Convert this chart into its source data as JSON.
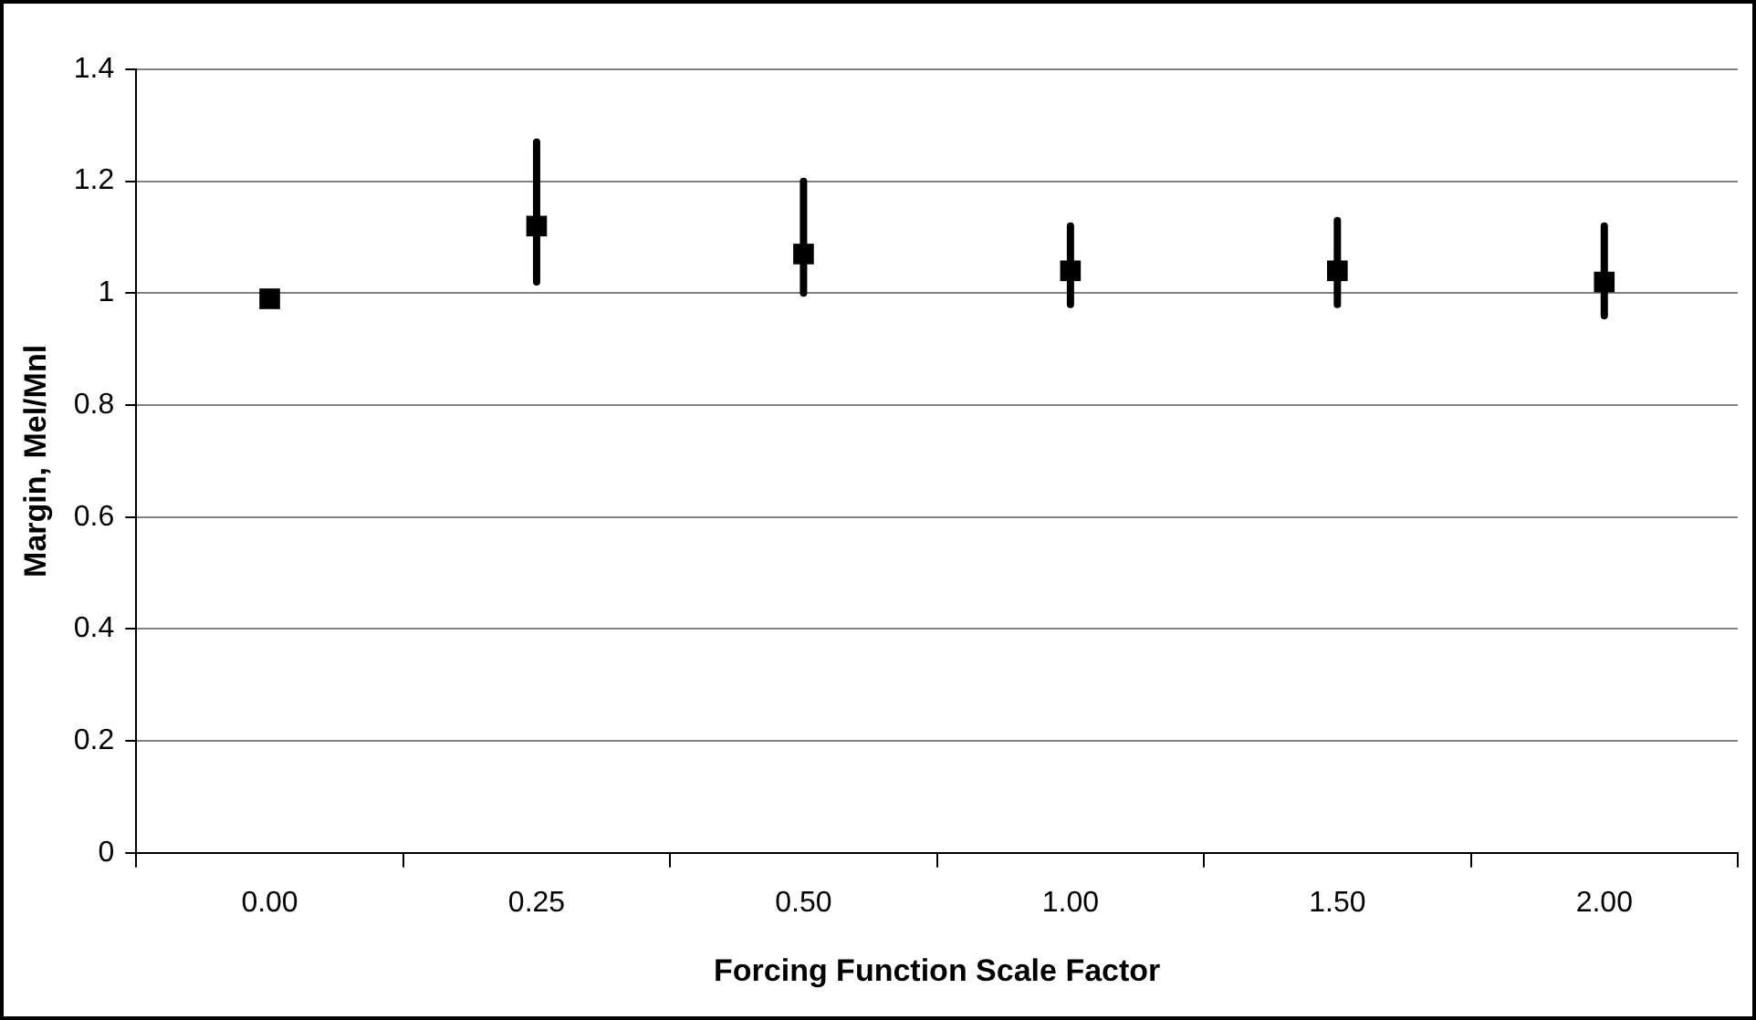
{
  "chart_data": {
    "type": "scatter",
    "xlabel": "Forcing Function Scale Factor",
    "ylabel": "Margin, Mel/Mnl",
    "categories": [
      "0.00",
      "0.25",
      "0.50",
      "1.00",
      "1.50",
      "2.00"
    ],
    "series": [
      {
        "color": "#000000",
        "values": [
          0.99,
          1.12,
          1.07,
          1.04,
          1.04,
          1.02
        ],
        "errors": [
          null,
          [
            1.02,
            1.27
          ],
          [
            1.0,
            1.2
          ],
          [
            0.98,
            1.12
          ],
          [
            0.98,
            1.13
          ],
          [
            0.96,
            1.12
          ]
        ]
      }
    ],
    "ylim": [
      0,
      1.4
    ],
    "yticks": [
      0,
      {
        "value": 0.2,
        "label": "0.2"
      },
      {
        "value": 0.4,
        "label": "0.4"
      },
      {
        "value": 0.6,
        "label": "0.6"
      },
      {
        "value": 0.8,
        "label": "0.8"
      },
      1,
      {
        "value": 1.2,
        "label": "1.2"
      },
      {
        "value": 1.4,
        "label": "1.4"
      }
    ],
    "grid": "y",
    "marker": "square",
    "legend": false
  }
}
